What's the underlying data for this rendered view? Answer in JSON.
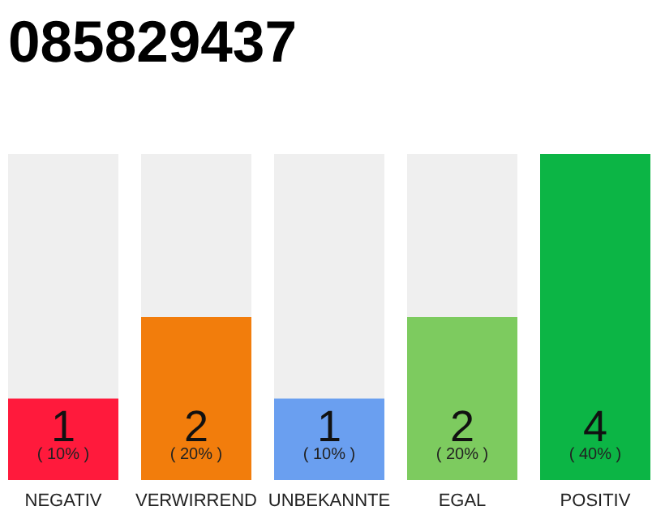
{
  "chart_data": {
    "type": "bar",
    "title": "085829437",
    "categories": [
      "NEGATIV",
      "VERWIRREND",
      "UNBEKANNTE",
      "EGAL",
      "POSITIV"
    ],
    "values": [
      1,
      2,
      1,
      2,
      4
    ],
    "colors": [
      "#ff1a3c",
      "#f27d0c",
      "#6a9ff0",
      "#7dcb5f",
      "#0cb545"
    ],
    "ylim": [
      0,
      4
    ],
    "tick_labels": "x",
    "data_labels": true,
    "annotations": [
      "( 10% )",
      "( 20% )",
      "( 10% )",
      "( 20% )",
      "( 40% )"
    ]
  }
}
